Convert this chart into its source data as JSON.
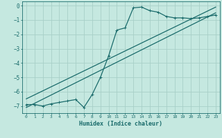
{
  "title": "",
  "xlabel": "Humidex (Indice chaleur)",
  "ylabel": "",
  "bg_color": "#c5e8e0",
  "grid_color": "#a8cfc8",
  "line_color": "#1a6b6b",
  "xlim": [
    -0.5,
    23.5
  ],
  "ylim": [
    -7.5,
    0.3
  ],
  "xticks": [
    0,
    1,
    2,
    3,
    4,
    5,
    6,
    7,
    8,
    9,
    10,
    11,
    12,
    13,
    14,
    15,
    16,
    17,
    18,
    19,
    20,
    21,
    22,
    23
  ],
  "yticks": [
    0,
    -1,
    -2,
    -3,
    -4,
    -5,
    -6,
    -7
  ],
  "wavy_x": [
    0,
    1,
    2,
    3,
    4,
    5,
    6,
    7,
    8,
    9,
    10,
    11,
    12,
    13,
    14,
    15,
    16,
    17,
    18,
    19,
    20,
    21,
    22,
    23
  ],
  "wavy_y": [
    -6.9,
    -6.9,
    -7.0,
    -6.85,
    -6.75,
    -6.65,
    -6.55,
    -7.1,
    -6.2,
    -5.0,
    -3.5,
    -1.7,
    -1.55,
    -0.15,
    -0.1,
    -0.35,
    -0.45,
    -0.75,
    -0.85,
    -0.85,
    -0.9,
    -0.85,
    -0.75,
    -0.65
  ],
  "line1_x": [
    0,
    23
  ],
  "line1_y": [
    -7.1,
    -0.5
  ],
  "line2_x": [
    0,
    23
  ],
  "line2_y": [
    -6.5,
    -0.1
  ]
}
